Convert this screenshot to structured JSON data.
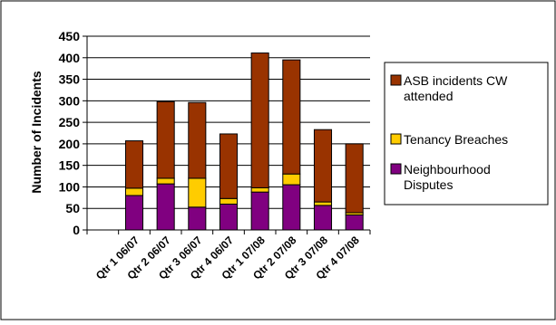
{
  "chart_data": {
    "type": "bar",
    "stacked": true,
    "title": "",
    "xlabel": "",
    "ylabel": "Number of Incidents",
    "ylim": [
      0,
      450
    ],
    "yticks": [
      0,
      50,
      100,
      150,
      200,
      250,
      300,
      350,
      400,
      450
    ],
    "grid": true,
    "legend_position": "right",
    "categories": [
      "Qtr 1 06/07",
      "Qtr 2 06/07",
      "Qtr 3 06/07",
      "Qtr 4 06/07",
      "Qtr 1 07/08",
      "Qtr 2 07/08",
      "Qtr 3 07/08",
      "Qtr 4 07/08"
    ],
    "series": [
      {
        "name": "Neighbourhood Disputes",
        "color": "#800080",
        "values": [
          80,
          107,
          53,
          60,
          88,
          105,
          57,
          35
        ]
      },
      {
        "name": "Tenancy Breaches",
        "color": "#FFCC00",
        "values": [
          17,
          13,
          67,
          13,
          10,
          25,
          8,
          5
        ]
      },
      {
        "name": "ASB incidents CW attended",
        "color": "#993300",
        "values": [
          110,
          178,
          176,
          150,
          313,
          265,
          168,
          160
        ]
      }
    ],
    "legend_order": [
      2,
      1,
      0
    ]
  }
}
